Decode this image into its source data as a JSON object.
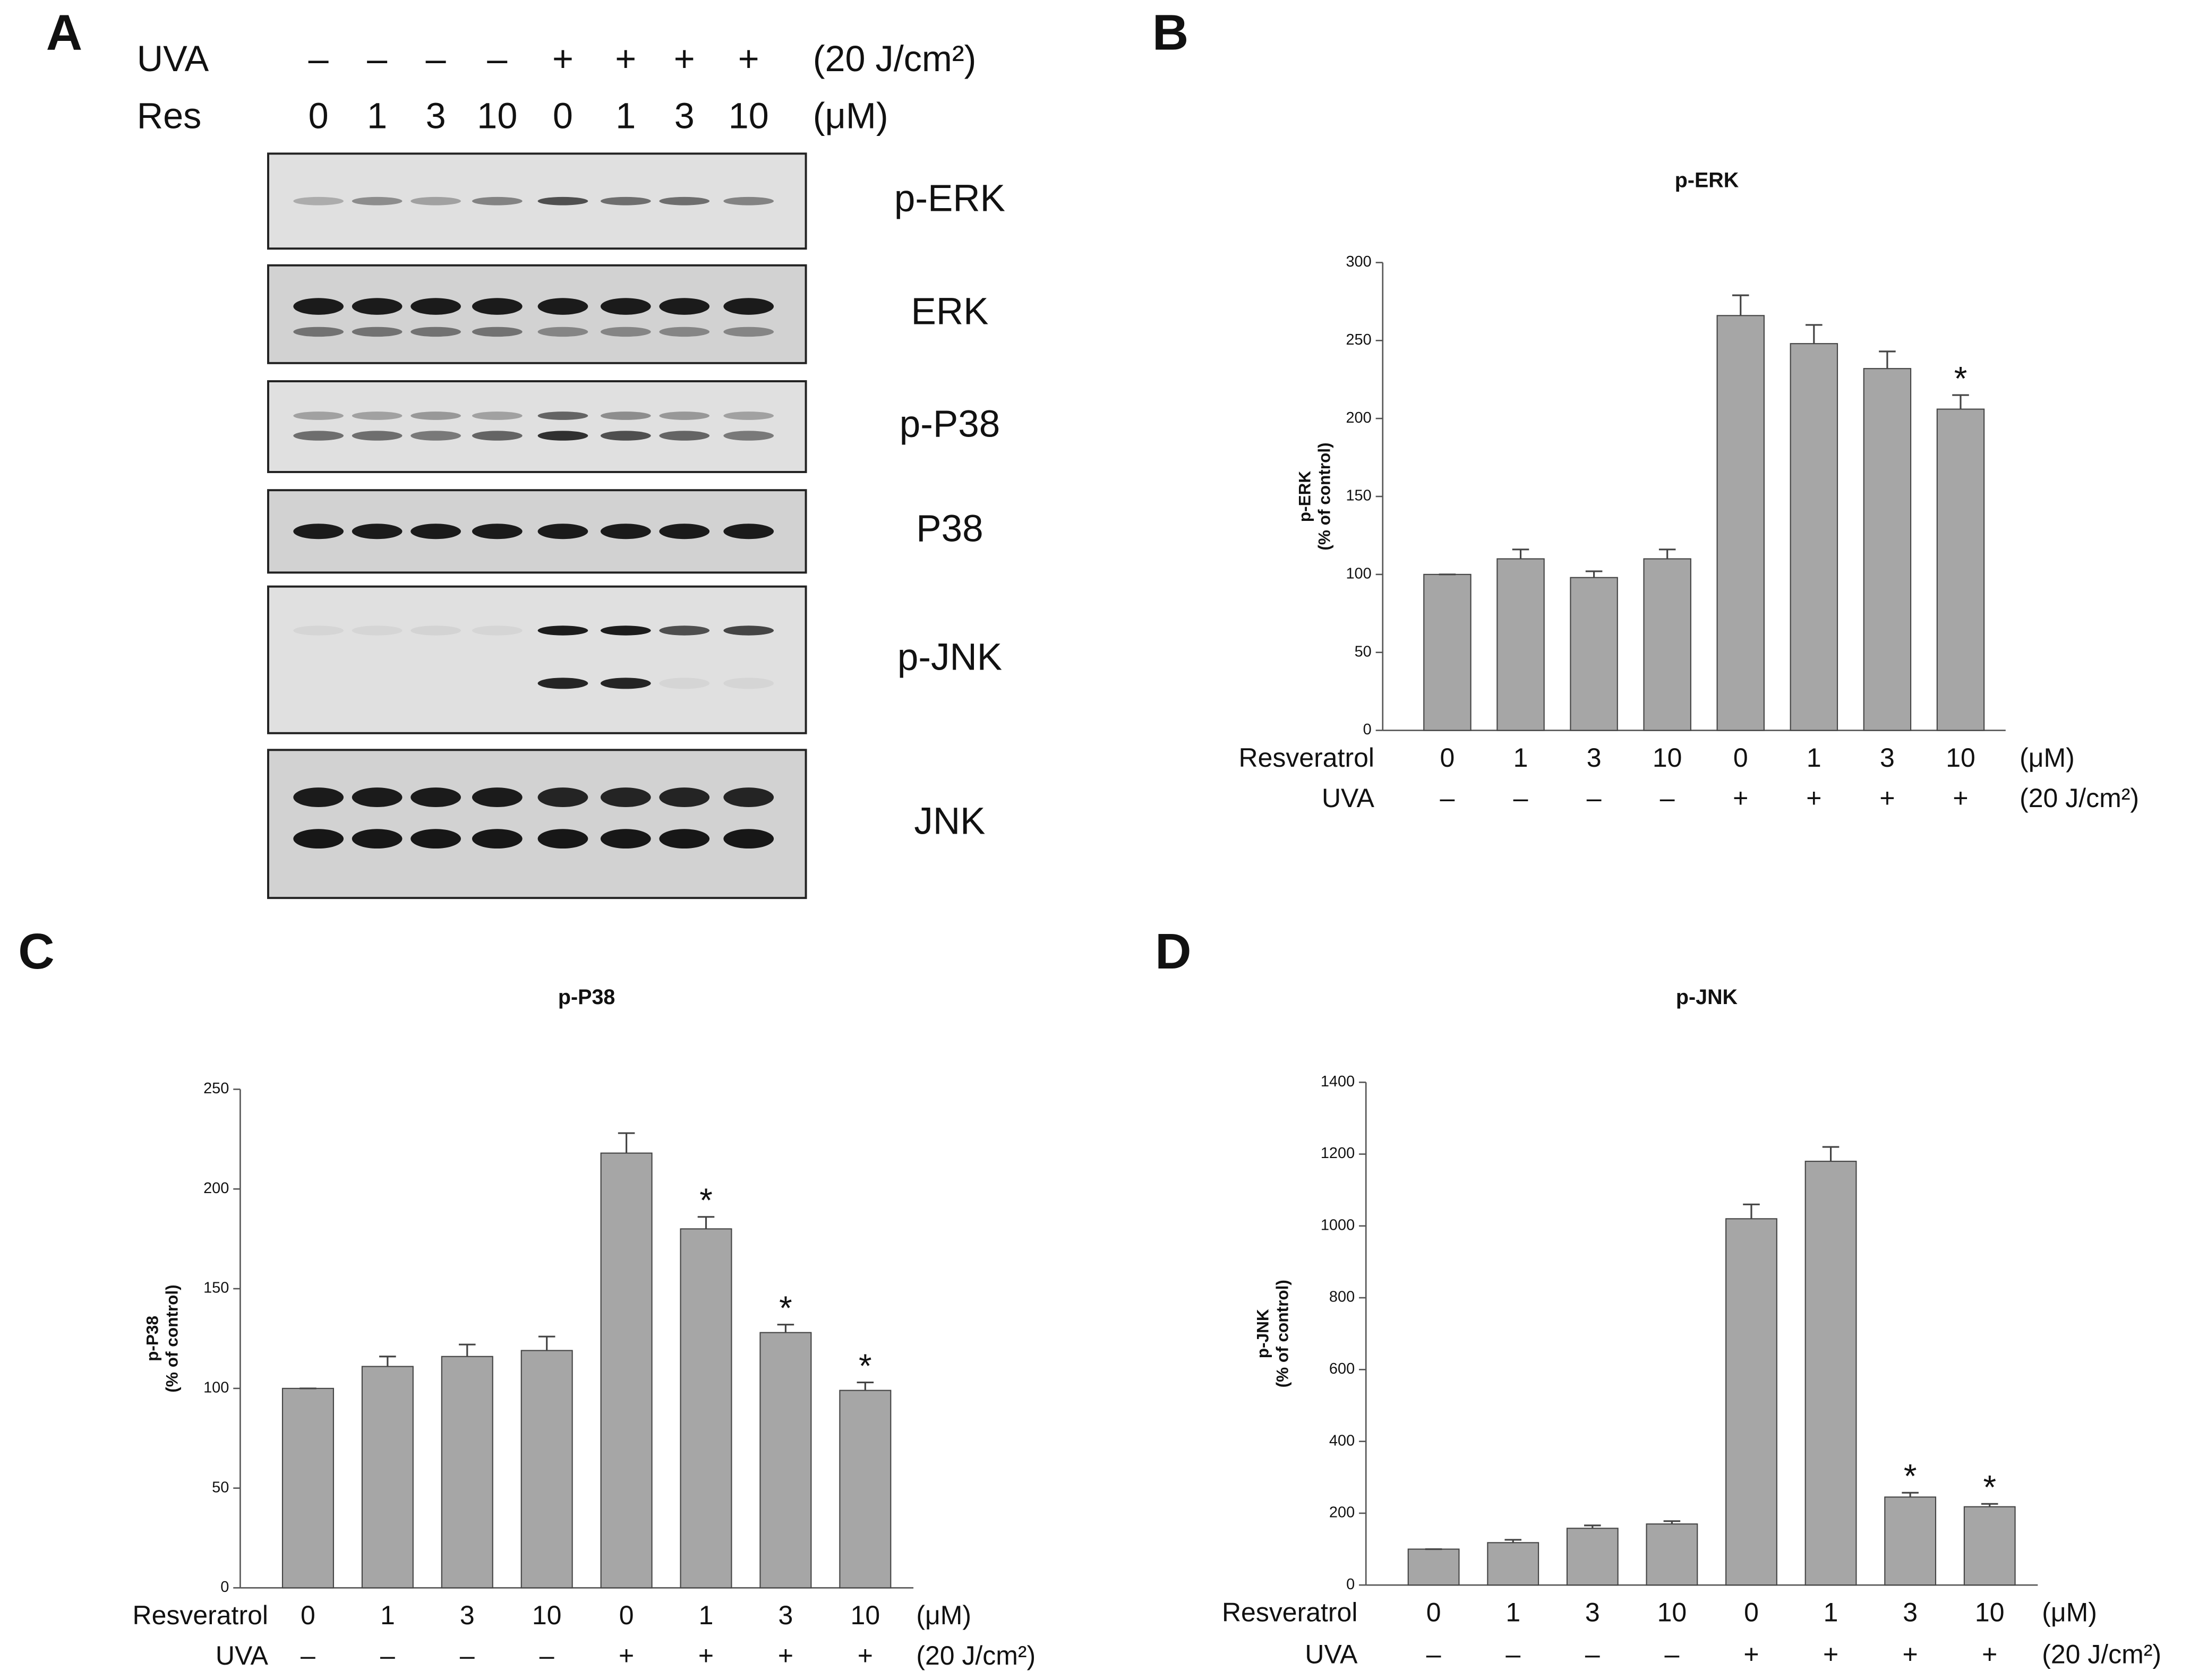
{
  "blot": {
    "panel_label": "A",
    "rows": [
      {
        "label": "UVA",
        "values": [
          "–",
          "–",
          "–",
          "–",
          "+",
          "+",
          "+",
          "+"
        ],
        "unit": "(20 J/cm²)"
      },
      {
        "label": "Res",
        "values": [
          "0",
          "1",
          "3",
          "10",
          "0",
          "1",
          "3",
          "10"
        ],
        "unit": "(μM)"
      }
    ],
    "bands": [
      "p-ERK",
      "ERK",
      "p-P38",
      "P38",
      "p-JNK",
      "JNK"
    ]
  },
  "chart_data": [
    {
      "panel_label": "B",
      "type": "bar",
      "title": "p-ERK",
      "y_label": [
        "p-ERK",
        "(% of control)"
      ],
      "categories": [
        "0",
        "1",
        "3",
        "10",
        "0",
        "1",
        "3",
        "10"
      ],
      "category_label": "Resveratrol",
      "category_unit": "(μM)",
      "uva": [
        "–",
        "–",
        "–",
        "–",
        "+",
        "+",
        "+",
        "+"
      ],
      "uva_label": "UVA",
      "uva_unit": "(20 J/cm²)",
      "values": [
        100,
        110,
        98,
        110,
        266,
        248,
        232,
        206
      ],
      "errors": [
        0,
        6,
        4,
        6,
        13,
        12,
        11,
        9
      ],
      "significance": [
        null,
        null,
        null,
        null,
        null,
        null,
        null,
        "*"
      ],
      "color": "#a6a6a6",
      "ylim": [
        0,
        300
      ],
      "yticks": [
        0,
        50,
        100,
        150,
        200,
        250,
        300
      ]
    },
    {
      "panel_label": "C",
      "type": "bar",
      "title": "p-P38",
      "y_label": [
        "p-P38",
        "(% of control)"
      ],
      "categories": [
        "0",
        "1",
        "3",
        "10",
        "0",
        "1",
        "3",
        "10"
      ],
      "category_label": "Resveratrol",
      "category_unit": "(μM)",
      "uva": [
        "–",
        "–",
        "–",
        "–",
        "+",
        "+",
        "+",
        "+"
      ],
      "uva_label": "UVA",
      "uva_unit": "(20 J/cm²)",
      "values": [
        100,
        111,
        116,
        119,
        218,
        180,
        128,
        99
      ],
      "errors": [
        0,
        5,
        6,
        7,
        10,
        6,
        4,
        4
      ],
      "significance": [
        null,
        null,
        null,
        null,
        null,
        "*",
        "*",
        "*"
      ],
      "color": "#a6a6a6",
      "ylim": [
        0,
        250
      ],
      "yticks": [
        0,
        50,
        100,
        150,
        200,
        250
      ]
    },
    {
      "panel_label": "D",
      "type": "bar",
      "title": "p-JNK",
      "y_label": [
        "p-JNK",
        "(% of control)"
      ],
      "categories": [
        "0",
        "1",
        "3",
        "10",
        "0",
        "1",
        "3",
        "10"
      ],
      "category_label": "Resveratrol",
      "category_unit": "(μM)",
      "uva": [
        "–",
        "–",
        "–",
        "–",
        "+",
        "+",
        "+",
        "+"
      ],
      "uva_label": "UVA",
      "uva_unit": "(20 J/cm²)",
      "values": [
        100,
        118,
        158,
        170,
        1020,
        1180,
        245,
        218
      ],
      "errors": [
        0,
        8,
        8,
        8,
        40,
        40,
        12,
        8
      ],
      "significance": [
        null,
        null,
        null,
        null,
        null,
        null,
        "*",
        "*"
      ],
      "color": "#a6a6a6",
      "ylim": [
        0,
        1400
      ],
      "yticks": [
        0,
        200,
        400,
        600,
        800,
        1000,
        1200,
        1400
      ]
    }
  ]
}
